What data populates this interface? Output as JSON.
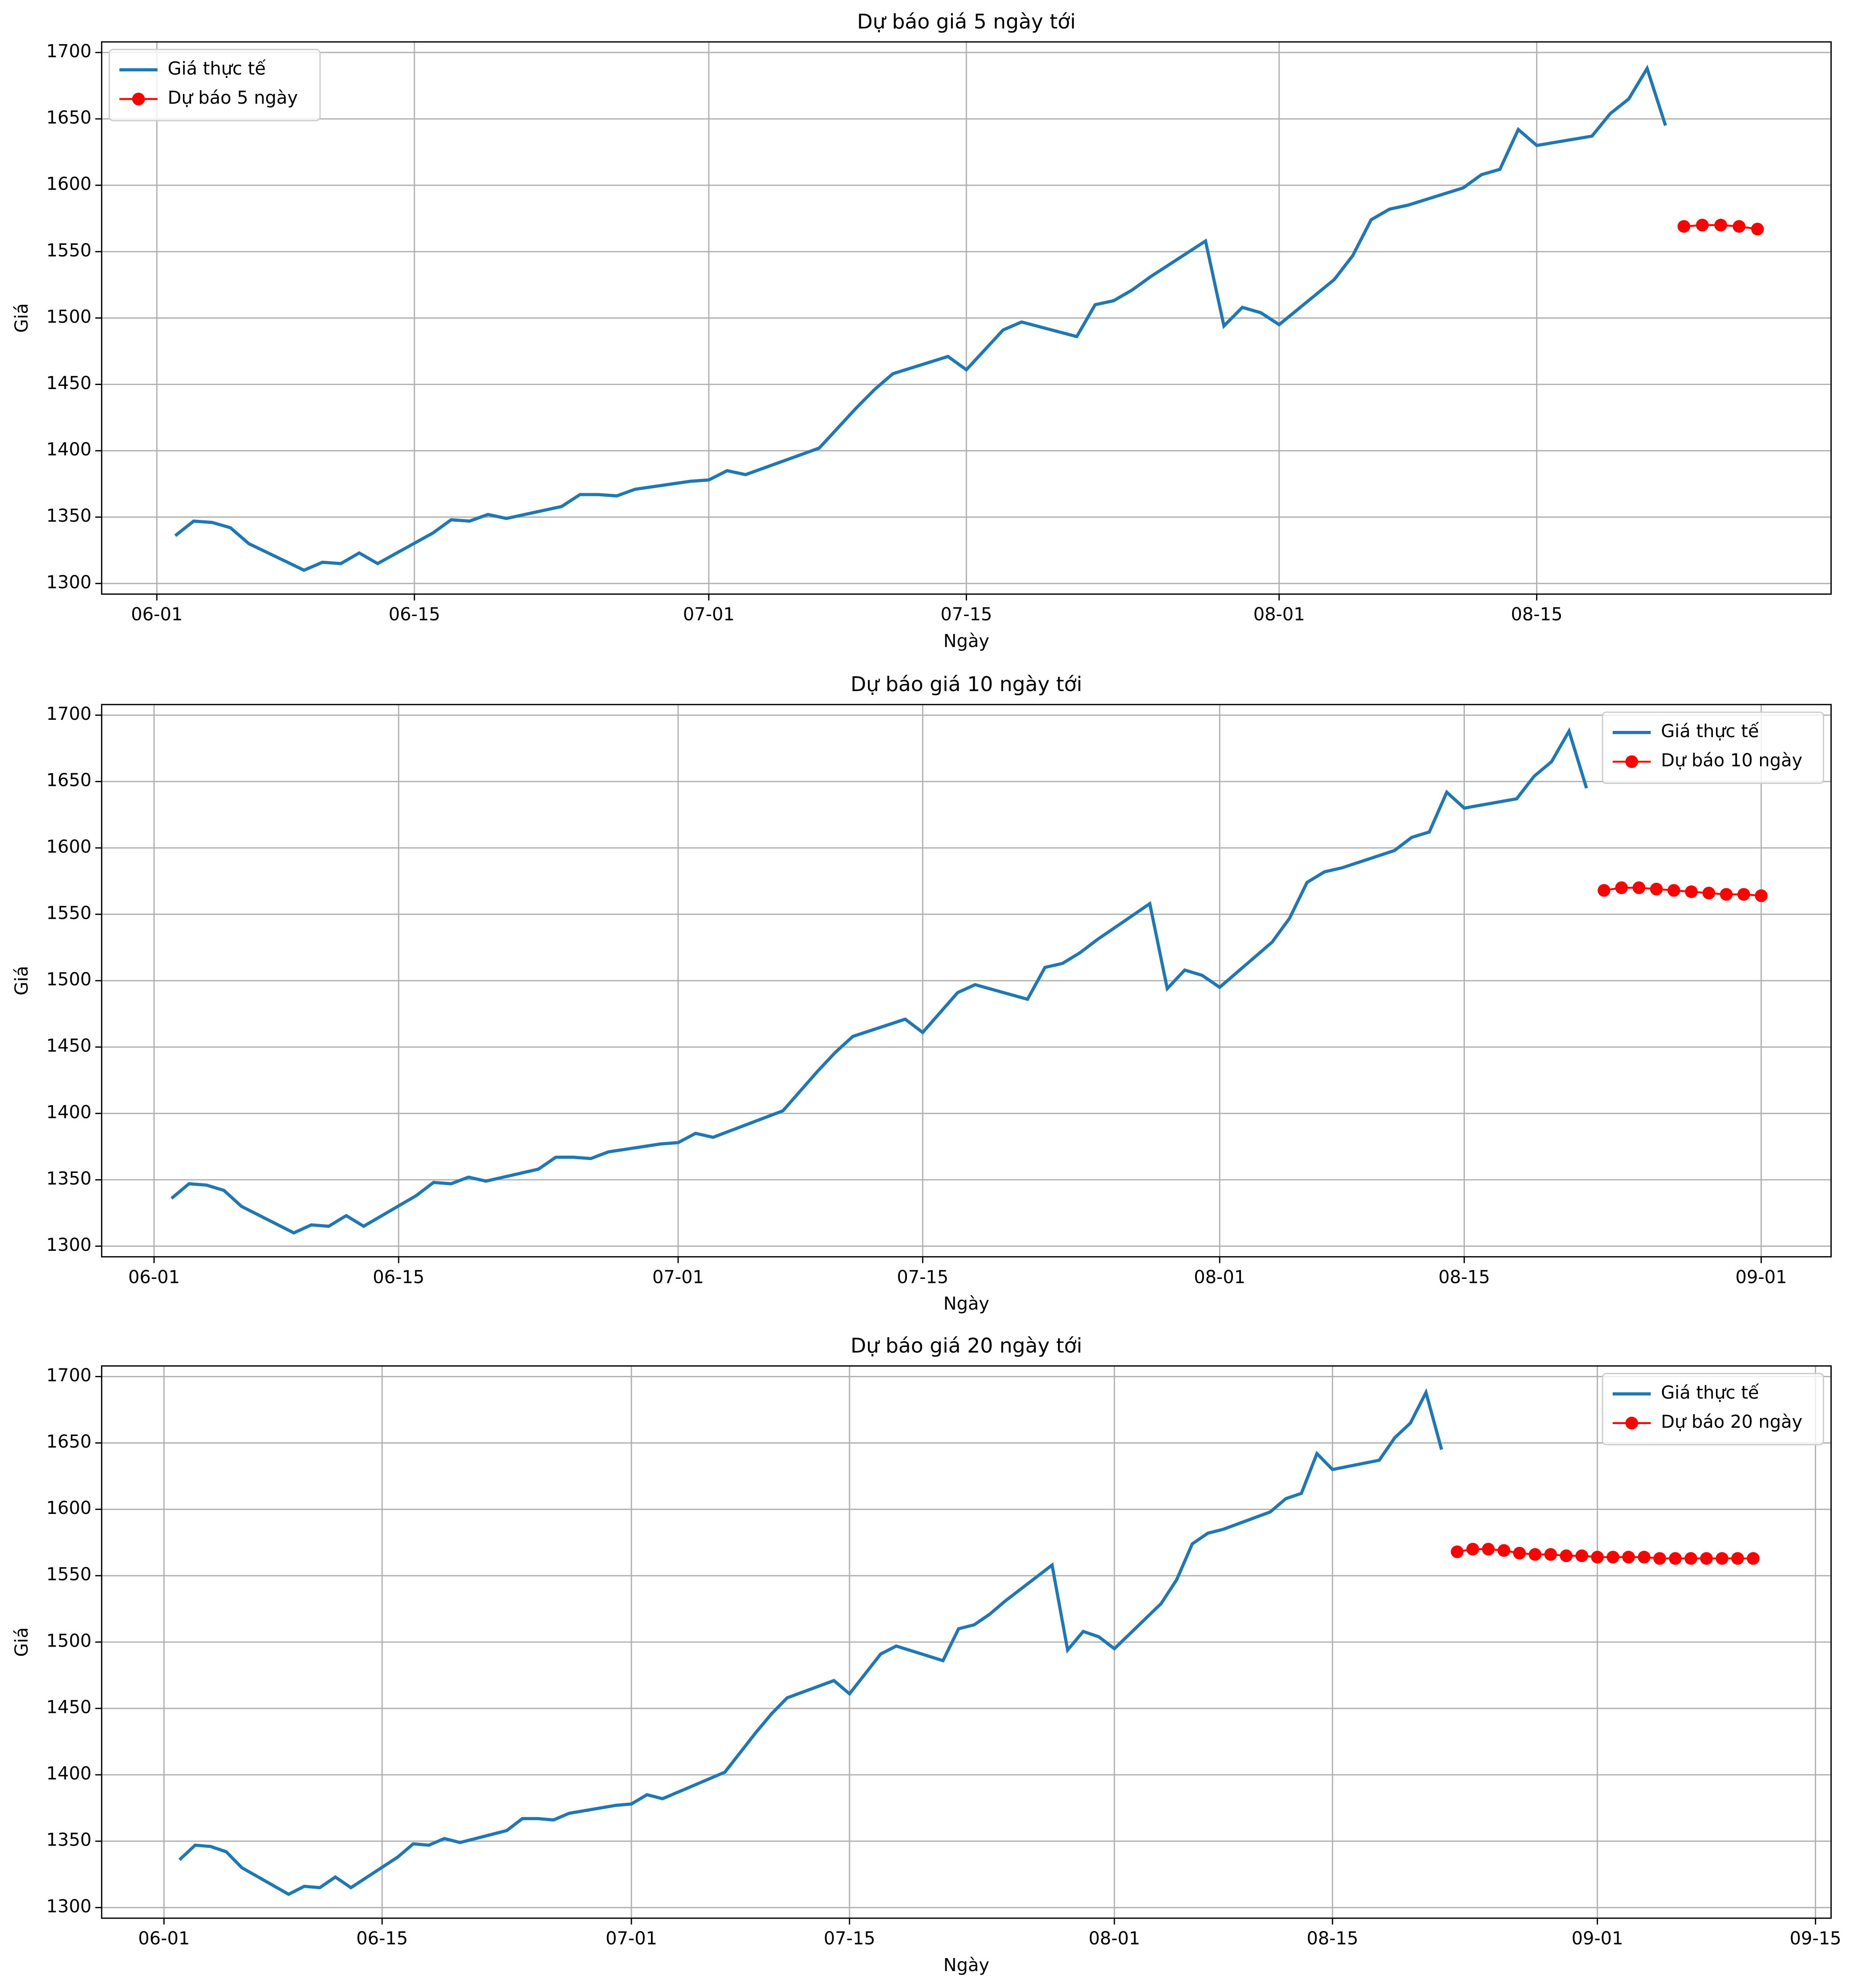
{
  "chart_data": [
    {
      "type": "line",
      "title": "Dự báo giá 5 ngày tới",
      "xlabel": "Ngày",
      "ylabel": "Giá",
      "xlim": [
        "05-29",
        "08-31"
      ],
      "ylim": [
        1292,
        1708
      ],
      "xticks": [
        "06-01",
        "06-15",
        "07-01",
        "07-15",
        "08-01",
        "08-15"
      ],
      "yticks": [
        1300,
        1350,
        1400,
        1450,
        1500,
        1550,
        1600,
        1650,
        1700
      ],
      "grid": true,
      "legend": "upper left",
      "series": [
        {
          "name": "Giá thực tế",
          "color": "#1f77b4",
          "x": [
            "06-02",
            "06-03",
            "06-04",
            "06-05",
            "06-06",
            "06-09",
            "06-10",
            "06-11",
            "06-12",
            "06-13",
            "06-16",
            "06-17",
            "06-18",
            "06-19",
            "06-20",
            "06-23",
            "06-24",
            "06-25",
            "06-26",
            "06-27",
            "06-30",
            "07-01",
            "07-02",
            "07-03",
            "07-07",
            "07-08",
            "07-09",
            "07-10",
            "07-11",
            "07-14",
            "07-15",
            "07-16",
            "07-17",
            "07-18",
            "07-21",
            "07-22",
            "07-23",
            "07-24",
            "07-25",
            "07-28",
            "07-29",
            "07-30",
            "07-31",
            "08-01",
            "08-04",
            "08-05",
            "08-06",
            "08-07",
            "08-08",
            "08-11",
            "08-12",
            "08-13",
            "08-14",
            "08-15",
            "08-18",
            "08-19",
            "08-20",
            "08-21",
            "08-22"
          ],
          "values": [
            1336,
            1347,
            1346,
            1342,
            1330,
            1310,
            1316,
            1315,
            1323,
            1315,
            1338,
            1348,
            1347,
            1352,
            1349,
            1358,
            1367,
            1367,
            1366,
            1371,
            1377,
            1378,
            1385,
            1382,
            1402,
            1417,
            1432,
            1446,
            1458,
            1471,
            1461,
            1476,
            1491,
            1497,
            1486,
            1510,
            1513,
            1521,
            1531,
            1558,
            1494,
            1508,
            1504,
            1495,
            1529,
            1547,
            1574,
            1582,
            1585,
            1598,
            1608,
            1612,
            1642,
            1630,
            1637,
            1654,
            1665,
            1688,
            1645
          ]
        },
        {
          "name": "Dự báo 5 ngày",
          "color": "#ff0000",
          "marker": "o",
          "x": [
            "08-23",
            "08-24",
            "08-25",
            "08-26",
            "08-27"
          ],
          "values": [
            1569,
            1570,
            1570,
            1569,
            1567
          ]
        }
      ]
    },
    {
      "type": "line",
      "title": "Dự báo giá 10 ngày tới",
      "xlabel": "Ngày",
      "ylabel": "Giá",
      "xlim": [
        "05-29",
        "09-05"
      ],
      "ylim": [
        1292,
        1708
      ],
      "xticks": [
        "06-01",
        "06-15",
        "07-01",
        "07-15",
        "08-01",
        "08-15",
        "09-01"
      ],
      "yticks": [
        1300,
        1350,
        1400,
        1450,
        1500,
        1550,
        1600,
        1650,
        1700
      ],
      "grid": true,
      "legend": "upper right",
      "series": [
        {
          "name": "Giá thực tế",
          "color": "#1f77b4",
          "x": [
            "06-02",
            "06-03",
            "06-04",
            "06-05",
            "06-06",
            "06-09",
            "06-10",
            "06-11",
            "06-12",
            "06-13",
            "06-16",
            "06-17",
            "06-18",
            "06-19",
            "06-20",
            "06-23",
            "06-24",
            "06-25",
            "06-26",
            "06-27",
            "06-30",
            "07-01",
            "07-02",
            "07-03",
            "07-07",
            "07-08",
            "07-09",
            "07-10",
            "07-11",
            "07-14",
            "07-15",
            "07-16",
            "07-17",
            "07-18",
            "07-21",
            "07-22",
            "07-23",
            "07-24",
            "07-25",
            "07-28",
            "07-29",
            "07-30",
            "07-31",
            "08-01",
            "08-04",
            "08-05",
            "08-06",
            "08-07",
            "08-08",
            "08-11",
            "08-12",
            "08-13",
            "08-14",
            "08-15",
            "08-18",
            "08-19",
            "08-20",
            "08-21",
            "08-22"
          ],
          "values": [
            1336,
            1347,
            1346,
            1342,
            1330,
            1310,
            1316,
            1315,
            1323,
            1315,
            1338,
            1348,
            1347,
            1352,
            1349,
            1358,
            1367,
            1367,
            1366,
            1371,
            1377,
            1378,
            1385,
            1382,
            1402,
            1417,
            1432,
            1446,
            1458,
            1471,
            1461,
            1476,
            1491,
            1497,
            1486,
            1510,
            1513,
            1521,
            1531,
            1558,
            1494,
            1508,
            1504,
            1495,
            1529,
            1547,
            1574,
            1582,
            1585,
            1598,
            1608,
            1612,
            1642,
            1630,
            1637,
            1654,
            1665,
            1688,
            1645
          ]
        },
        {
          "name": "Dự báo 10 ngày",
          "color": "#ff0000",
          "marker": "o",
          "x": [
            "08-23",
            "08-24",
            "08-25",
            "08-26",
            "08-27",
            "08-28",
            "08-29",
            "08-30",
            "08-31",
            "09-01"
          ],
          "values": [
            1568,
            1570,
            1570,
            1569,
            1568,
            1567,
            1566,
            1565,
            1565,
            1564
          ]
        }
      ]
    },
    {
      "type": "line",
      "title": "Dự báo giá 20 ngày tới",
      "xlabel": "Ngày",
      "ylabel": "Giá",
      "xlim": [
        "05-28",
        "09-16"
      ],
      "ylim": [
        1292,
        1708
      ],
      "xticks": [
        "06-01",
        "06-15",
        "07-01",
        "07-15",
        "08-01",
        "08-15",
        "09-01",
        "09-15"
      ],
      "yticks": [
        1300,
        1350,
        1400,
        1450,
        1500,
        1550,
        1600,
        1650,
        1700
      ],
      "grid": true,
      "legend": "upper right",
      "series": [
        {
          "name": "Giá thực tế",
          "color": "#1f77b4",
          "x": [
            "06-02",
            "06-03",
            "06-04",
            "06-05",
            "06-06",
            "06-09",
            "06-10",
            "06-11",
            "06-12",
            "06-13",
            "06-16",
            "06-17",
            "06-18",
            "06-19",
            "06-20",
            "06-23",
            "06-24",
            "06-25",
            "06-26",
            "06-27",
            "06-30",
            "07-01",
            "07-02",
            "07-03",
            "07-07",
            "07-08",
            "07-09",
            "07-10",
            "07-11",
            "07-14",
            "07-15",
            "07-16",
            "07-17",
            "07-18",
            "07-21",
            "07-22",
            "07-23",
            "07-24",
            "07-25",
            "07-28",
            "07-29",
            "07-30",
            "07-31",
            "08-01",
            "08-04",
            "08-05",
            "08-06",
            "08-07",
            "08-08",
            "08-11",
            "08-12",
            "08-13",
            "08-14",
            "08-15",
            "08-18",
            "08-19",
            "08-20",
            "08-21",
            "08-22"
          ],
          "values": [
            1336,
            1347,
            1346,
            1342,
            1330,
            1310,
            1316,
            1315,
            1323,
            1315,
            1338,
            1348,
            1347,
            1352,
            1349,
            1358,
            1367,
            1367,
            1366,
            1371,
            1377,
            1378,
            1385,
            1382,
            1402,
            1417,
            1432,
            1446,
            1458,
            1471,
            1461,
            1476,
            1491,
            1497,
            1486,
            1510,
            1513,
            1521,
            1531,
            1558,
            1494,
            1508,
            1504,
            1495,
            1529,
            1547,
            1574,
            1582,
            1585,
            1598,
            1608,
            1612,
            1642,
            1630,
            1637,
            1654,
            1665,
            1688,
            1645
          ]
        },
        {
          "name": "Dự báo 20 ngày",
          "color": "#ff0000",
          "marker": "o",
          "x": [
            "08-23",
            "08-24",
            "08-25",
            "08-26",
            "08-27",
            "08-28",
            "08-29",
            "08-30",
            "08-31",
            "09-01",
            "09-02",
            "09-03",
            "09-04",
            "09-05",
            "09-06",
            "09-07",
            "09-08",
            "09-09",
            "09-10",
            "09-11"
          ],
          "values": [
            1568,
            1570,
            1570,
            1569,
            1567,
            1566,
            1566,
            1565,
            1565,
            1564,
            1564,
            1564,
            1564,
            1563,
            1563,
            1563,
            1563,
            1563,
            1563,
            1563
          ]
        }
      ]
    }
  ]
}
